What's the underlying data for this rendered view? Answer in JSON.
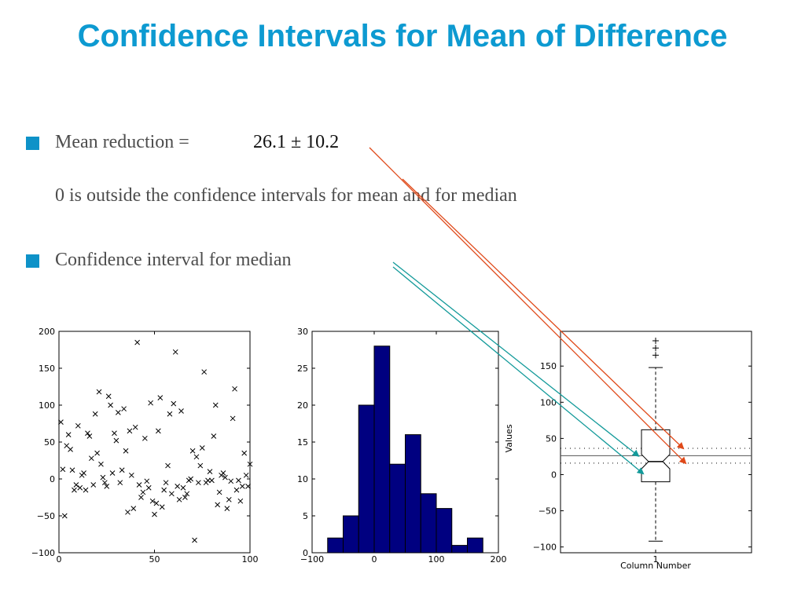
{
  "slide": {
    "title": "Confidence Intervals for Mean of Difference",
    "bullets": [
      {
        "text": "Mean reduction =",
        "formula": "26.1 ± 10.2"
      },
      {
        "text": "0 is outside the confidence intervals for mean and for median"
      },
      {
        "text": "Confidence interval for median"
      }
    ]
  },
  "colors": {
    "title": "#0d9ad1",
    "bullet": "#0e92c8",
    "bars": "#000080",
    "arrow_mean": "#e04a1a",
    "arrow_median": "#139a9a"
  },
  "chart_data": [
    {
      "type": "scatter",
      "marker": "x",
      "xlim": [
        0,
        100
      ],
      "ylim": [
        -100,
        200
      ],
      "xticks": [
        "0",
        "50",
        "100"
      ],
      "yticks": [
        "−100",
        "−50",
        "0",
        "50",
        "100",
        "150",
        "200"
      ],
      "x": [
        1,
        2,
        3,
        4,
        5,
        6,
        7,
        8,
        9,
        10,
        11,
        12,
        13,
        14,
        15,
        16,
        17,
        18,
        19,
        20,
        21,
        22,
        23,
        24,
        25,
        26,
        27,
        28,
        29,
        30,
        31,
        32,
        33,
        34,
        35,
        36,
        37,
        38,
        39,
        40,
        41,
        42,
        43,
        44,
        45,
        46,
        47,
        48,
        49,
        50,
        51,
        52,
        53,
        54,
        55,
        56,
        57,
        58,
        59,
        60,
        61,
        62,
        63,
        64,
        65,
        66,
        67,
        68,
        69,
        70,
        71,
        72,
        73,
        74,
        75,
        76,
        77,
        78,
        79,
        80,
        81,
        82,
        83,
        84,
        85,
        86,
        87,
        88,
        89,
        90,
        91,
        92,
        93,
        94,
        95,
        96,
        97,
        98,
        99,
        100
      ],
      "y": [
        77,
        13,
        -50,
        45,
        60,
        40,
        12,
        -15,
        -8,
        72,
        -12,
        5,
        8,
        -15,
        62,
        58,
        28,
        -8,
        88,
        35,
        118,
        20,
        2,
        -5,
        -10,
        112,
        100,
        8,
        62,
        52,
        90,
        -5,
        12,
        95,
        38,
        -45,
        65,
        5,
        -40,
        70,
        185,
        -8,
        -25,
        -18,
        55,
        -3,
        -12,
        103,
        -30,
        -48,
        -33,
        65,
        110,
        -38,
        -15,
        -5,
        18,
        88,
        -20,
        102,
        172,
        -10,
        -28,
        92,
        -12,
        -25,
        -20,
        -2,
        0,
        38,
        -83,
        30,
        -5,
        18,
        42,
        145,
        -5,
        -2,
        10,
        -2,
        58,
        100,
        -35,
        -18,
        5,
        8,
        2,
        -40,
        -28,
        -3,
        82,
        122,
        -15,
        -2,
        -30,
        -10,
        35,
        5,
        -10,
        20
      ]
    },
    {
      "type": "bar",
      "subtype": "histogram",
      "xlim": [
        -100,
        200
      ],
      "ylim": [
        0,
        30
      ],
      "xticks": [
        "−100",
        "0",
        "100",
        "200"
      ],
      "yticks": [
        "0",
        "5",
        "10",
        "15",
        "20",
        "25",
        "30"
      ],
      "bin_edges": [
        -75,
        -50,
        -25,
        0,
        25,
        50,
        75,
        100,
        125,
        150,
        175,
        200
      ],
      "values": [
        2,
        5,
        20,
        28,
        12,
        16,
        8,
        6,
        1,
        2,
        0
      ]
    },
    {
      "type": "boxplot",
      "xlabel": "Column Number",
      "ylabel": "Values",
      "xticks": [
        "1"
      ],
      "yticks": [
        "−100",
        "−50",
        "0",
        "50",
        "100",
        "150"
      ],
      "ylim": [
        -108,
        198
      ],
      "median": 18,
      "q1": -10,
      "q3": 62,
      "notch_low": 8,
      "notch_high": 28,
      "whisker_low": -92,
      "whisker_high": 148,
      "outliers": [
        165,
        175,
        185
      ],
      "reference_lines": [
        {
          "value": 26.1,
          "style": "solid"
        },
        {
          "value": 36.3,
          "style": "dotted"
        },
        {
          "value": 15.9,
          "style": "dotted"
        }
      ]
    }
  ]
}
